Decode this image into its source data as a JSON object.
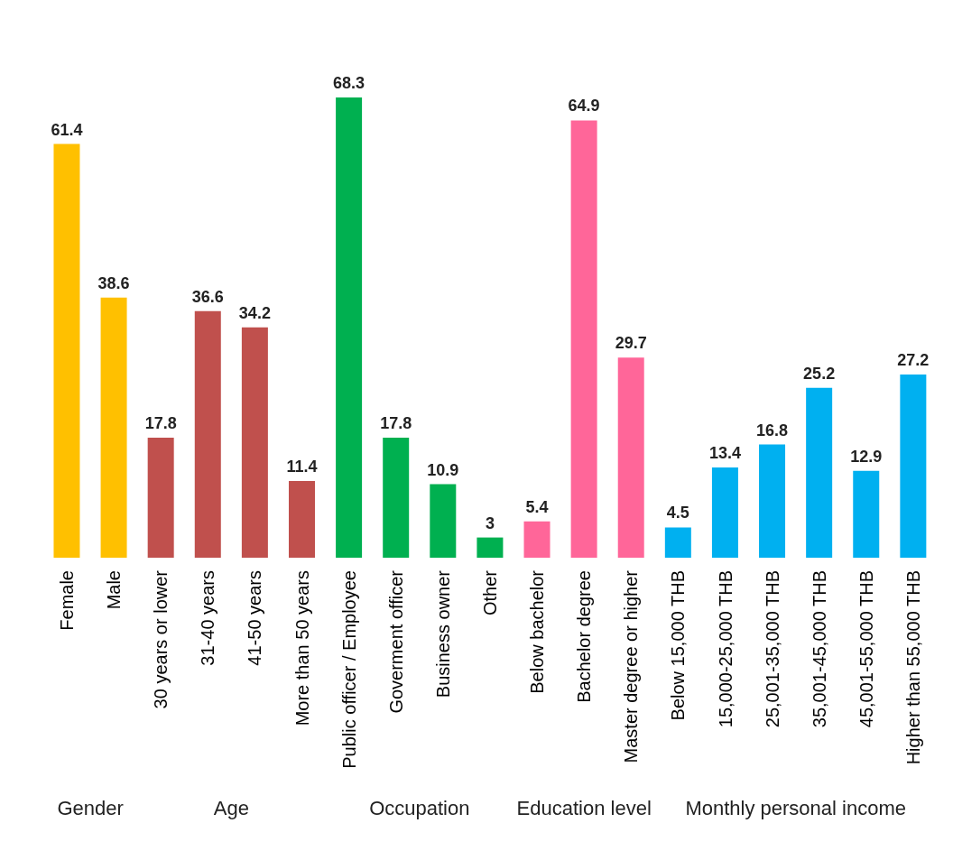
{
  "chart_data": {
    "type": "bar",
    "categories": [
      "Female",
      "Male",
      "30 years or lower",
      "31-40 years",
      "41-50 years",
      "More than 50 years",
      "Public officer / Employee",
      "Goverment officer",
      "Business owner",
      "Other",
      "Below bachelor",
      "Bachelor degree",
      "Master degree or higher",
      "Below 15,000 THB",
      "15,000-25,000 THB",
      "25,001-35,000 THB",
      "35,001-45,000 THB",
      "45,001-55,000 THB",
      "Higher than 55,000 THB"
    ],
    "values": [
      61.4,
      38.6,
      17.8,
      36.6,
      34.2,
      11.4,
      68.3,
      17.8,
      10.9,
      3,
      5.4,
      64.9,
      29.7,
      4.5,
      13.4,
      16.8,
      25.2,
      12.9,
      27.2
    ],
    "colors": [
      "#ffc000",
      "#ffc000",
      "#c0504d",
      "#c0504d",
      "#c0504d",
      "#c0504d",
      "#00b050",
      "#00b050",
      "#00b050",
      "#00b050",
      "#ff6699",
      "#ff6699",
      "#ff6699",
      "#00b0f0",
      "#00b0f0",
      "#00b0f0",
      "#00b0f0",
      "#00b0f0",
      "#00b0f0"
    ],
    "data_labels": true,
    "grid": false,
    "legend": false,
    "annotations": [
      "Gender",
      "Age",
      "Occupation",
      "Education level",
      "Monthly personal income"
    ]
  }
}
